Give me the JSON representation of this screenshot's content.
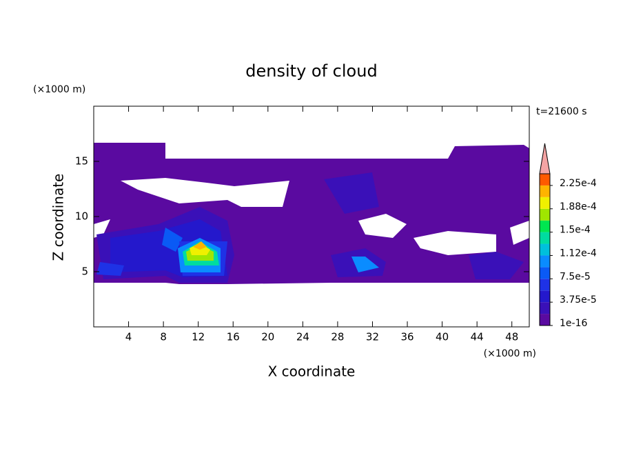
{
  "chart_data": {
    "type": "contour",
    "title": "density of cloud",
    "x_label": "X coordinate",
    "y_label": "Z coordinate",
    "x_unit": "(×1000 m)",
    "y_unit": "(×1000 m)",
    "time_label": "t=21600 s",
    "xlim": [
      0,
      50
    ],
    "ylim": [
      0,
      20
    ],
    "xticks": [
      4,
      8,
      12,
      16,
      20,
      24,
      28,
      32,
      36,
      40,
      44,
      48
    ],
    "yticks": [
      5,
      10,
      15
    ],
    "colorbar": {
      "levels": [
        1e-16,
        1.875e-05,
        3.75e-05,
        5.625e-05,
        7.5e-05,
        9.375e-05,
        0.0001125,
        0.00013125,
        0.00015,
        0.00016875,
        0.0001875,
        0.00020625,
        0.000225,
        0.00024375
      ],
      "colors": [
        "#5a0aa0",
        "#3a10b8",
        "#2418cc",
        "#1e32e6",
        "#0a5af5",
        "#0a8cff",
        "#00c0dc",
        "#00dca0",
        "#00e650",
        "#a0e600",
        "#f0f000",
        "#ffb400",
        "#ff5a00"
      ],
      "extend_color": "#f4a4a4",
      "ticks": [
        {
          "value": 1e-16,
          "label": "1e-16"
        },
        {
          "value": 3.75e-05,
          "label": "3.75e-5"
        },
        {
          "value": 7.5e-05,
          "label": "7.5e-5"
        },
        {
          "value": 0.0001125,
          "label": "1.12e-4"
        },
        {
          "value": 0.00015,
          "label": "1.5e-4"
        },
        {
          "value": 0.0001875,
          "label": "1.88e-4"
        },
        {
          "value": 0.000225,
          "label": "2.25e-4"
        }
      ]
    }
  }
}
